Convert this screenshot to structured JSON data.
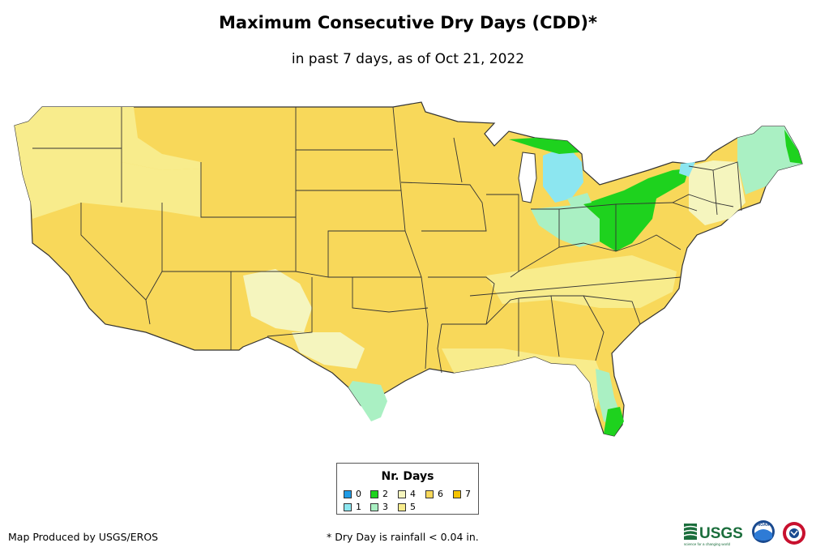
{
  "header": {
    "title": "Maximum Consecutive Dry Days (CDD)*",
    "subtitle": "in past 7 days, as of Oct 21, 2022"
  },
  "legend": {
    "title": "Nr. Days",
    "items": [
      {
        "label": "0",
        "color": "#1E9BE6"
      },
      {
        "label": "1",
        "color": "#8CE6F0"
      },
      {
        "label": "2",
        "color": "#1ED21E"
      },
      {
        "label": "3",
        "color": "#AAF0C3"
      },
      {
        "label": "4",
        "color": "#F5F5BE"
      },
      {
        "label": "5",
        "color": "#F8EC8C"
      },
      {
        "label": "6",
        "color": "#F8D85A"
      },
      {
        "label": "7",
        "color": "#F5C300"
      }
    ]
  },
  "footer": {
    "credit": "Map Produced by USGS/EROS",
    "footnote": "* Dry Day is rainfall < 0.04 in."
  },
  "logos": {
    "usgs_text": "USGS",
    "usgs_tagline": "science for a changing world",
    "noaa_text": "NOAA"
  }
}
